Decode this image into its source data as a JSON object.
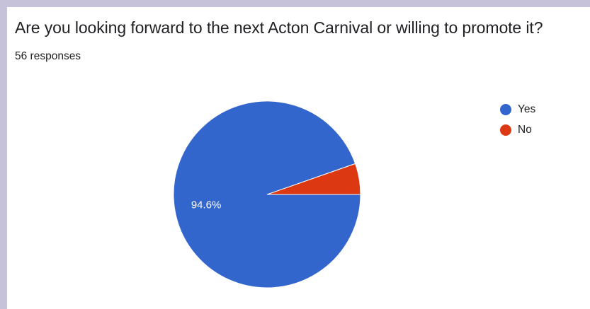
{
  "card": {
    "title": "Are you looking forward to the next Acton Carnival or willing to promote it?",
    "responses": "56 responses"
  },
  "chart_data": {
    "type": "pie",
    "slices": [
      {
        "label": "Yes",
        "value": 53,
        "color": "#3366cc"
      },
      {
        "label": "No",
        "value": 3,
        "color": "#dc3912"
      }
    ],
    "data_labels": [
      {
        "slice": "Yes",
        "text": "94.6%"
      }
    ],
    "legend_position": "right"
  }
}
